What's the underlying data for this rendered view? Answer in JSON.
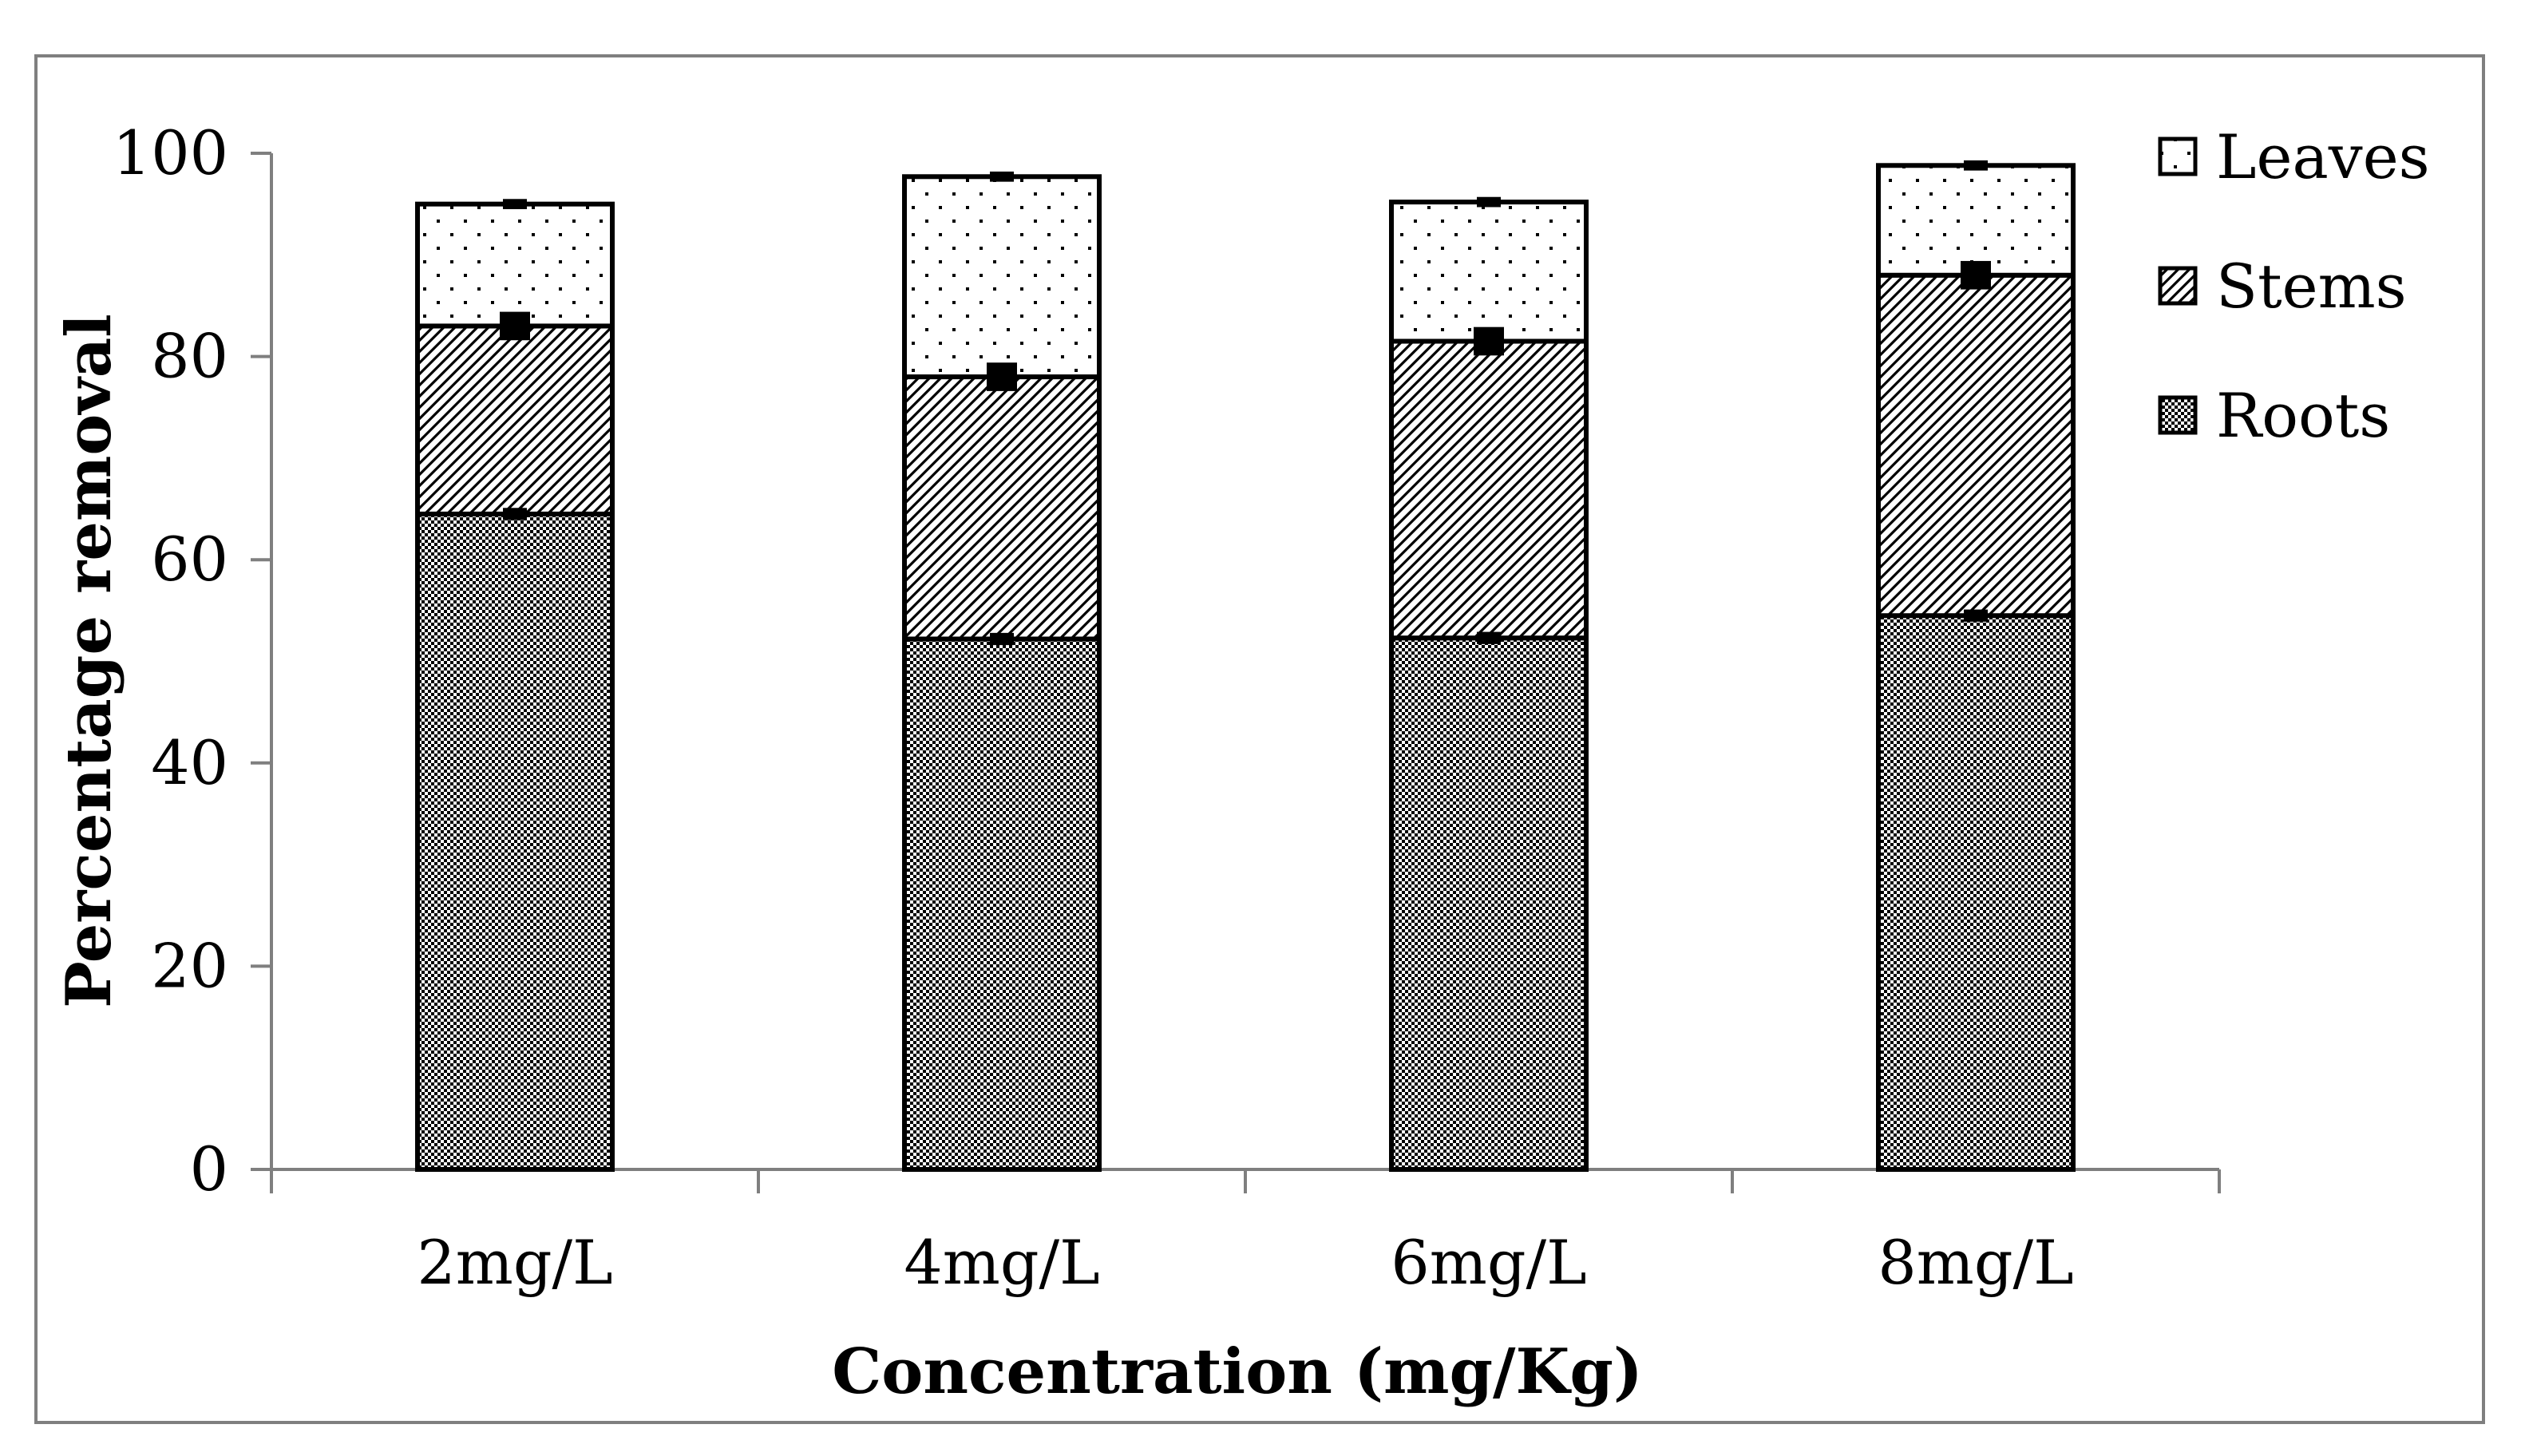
{
  "chart_data": {
    "type": "bar",
    "stacked": true,
    "title": "",
    "xlabel": "Concentration (mg/Kg)",
    "ylabel": "Percentage removal",
    "ylim": [
      0,
      100
    ],
    "yticks": [
      0,
      20,
      40,
      60,
      80,
      100
    ],
    "ytick_labels": [
      "0",
      "20",
      "40",
      "60",
      "80",
      "100"
    ],
    "grid": false,
    "legend_position": "top-right",
    "categories": [
      "2mg/L",
      "4mg/L",
      "6mg/L",
      "8mg/L"
    ],
    "series": [
      {
        "name": "Roots",
        "pattern": "checker",
        "values": [
          64.5,
          52.2,
          52.3,
          54.5
        ],
        "error": [
          0.6,
          0.6,
          0.6,
          0.6
        ]
      },
      {
        "name": "Stems",
        "pattern": "diagonal",
        "values": [
          18.5,
          25.8,
          29.2,
          33.5
        ],
        "error": [
          1.4,
          1.4,
          1.4,
          1.4
        ]
      },
      {
        "name": "Leaves",
        "pattern": "dots",
        "values": [
          12.0,
          19.7,
          13.7,
          10.8
        ],
        "error": [
          0.5,
          0.5,
          0.5,
          0.5
        ]
      }
    ],
    "legend_order": [
      "Leaves",
      "Stems",
      "Roots"
    ]
  },
  "colors": {
    "stroke": "#000000",
    "axis": "#7f7f7f",
    "frame": "#7f7f7f",
    "background": "#ffffff"
  }
}
